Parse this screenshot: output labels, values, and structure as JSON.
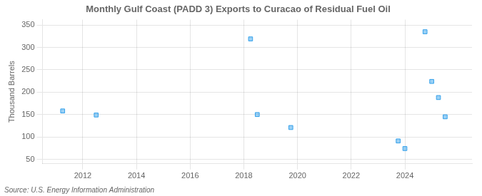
{
  "chart_data": {
    "type": "scatter",
    "title": "Monthly Gulf Coast (PADD 3) Exports to Curacao of Residual Fuel Oil",
    "ylabel": "Thousand Barrels",
    "annotation": "Source: U.S. Energy Information Administration",
    "x": [
      2011.25,
      2012.5,
      2018.25,
      2018.5,
      2019.75,
      2023.75,
      2024.0,
      2024.75,
      2025.0,
      2025.25,
      2025.5
    ],
    "values": [
      158,
      149,
      319,
      150,
      121,
      91,
      74,
      335,
      224,
      188,
      145
    ],
    "marker": "square",
    "xlim": [
      2010.5,
      2026.5
    ],
    "xticks": [
      2012,
      2014,
      2016,
      2018,
      2020,
      2022,
      2024
    ],
    "ylim": [
      40,
      362
    ],
    "yticks": [
      50,
      100,
      150,
      200,
      250,
      300,
      350
    ],
    "grid": true
  }
}
